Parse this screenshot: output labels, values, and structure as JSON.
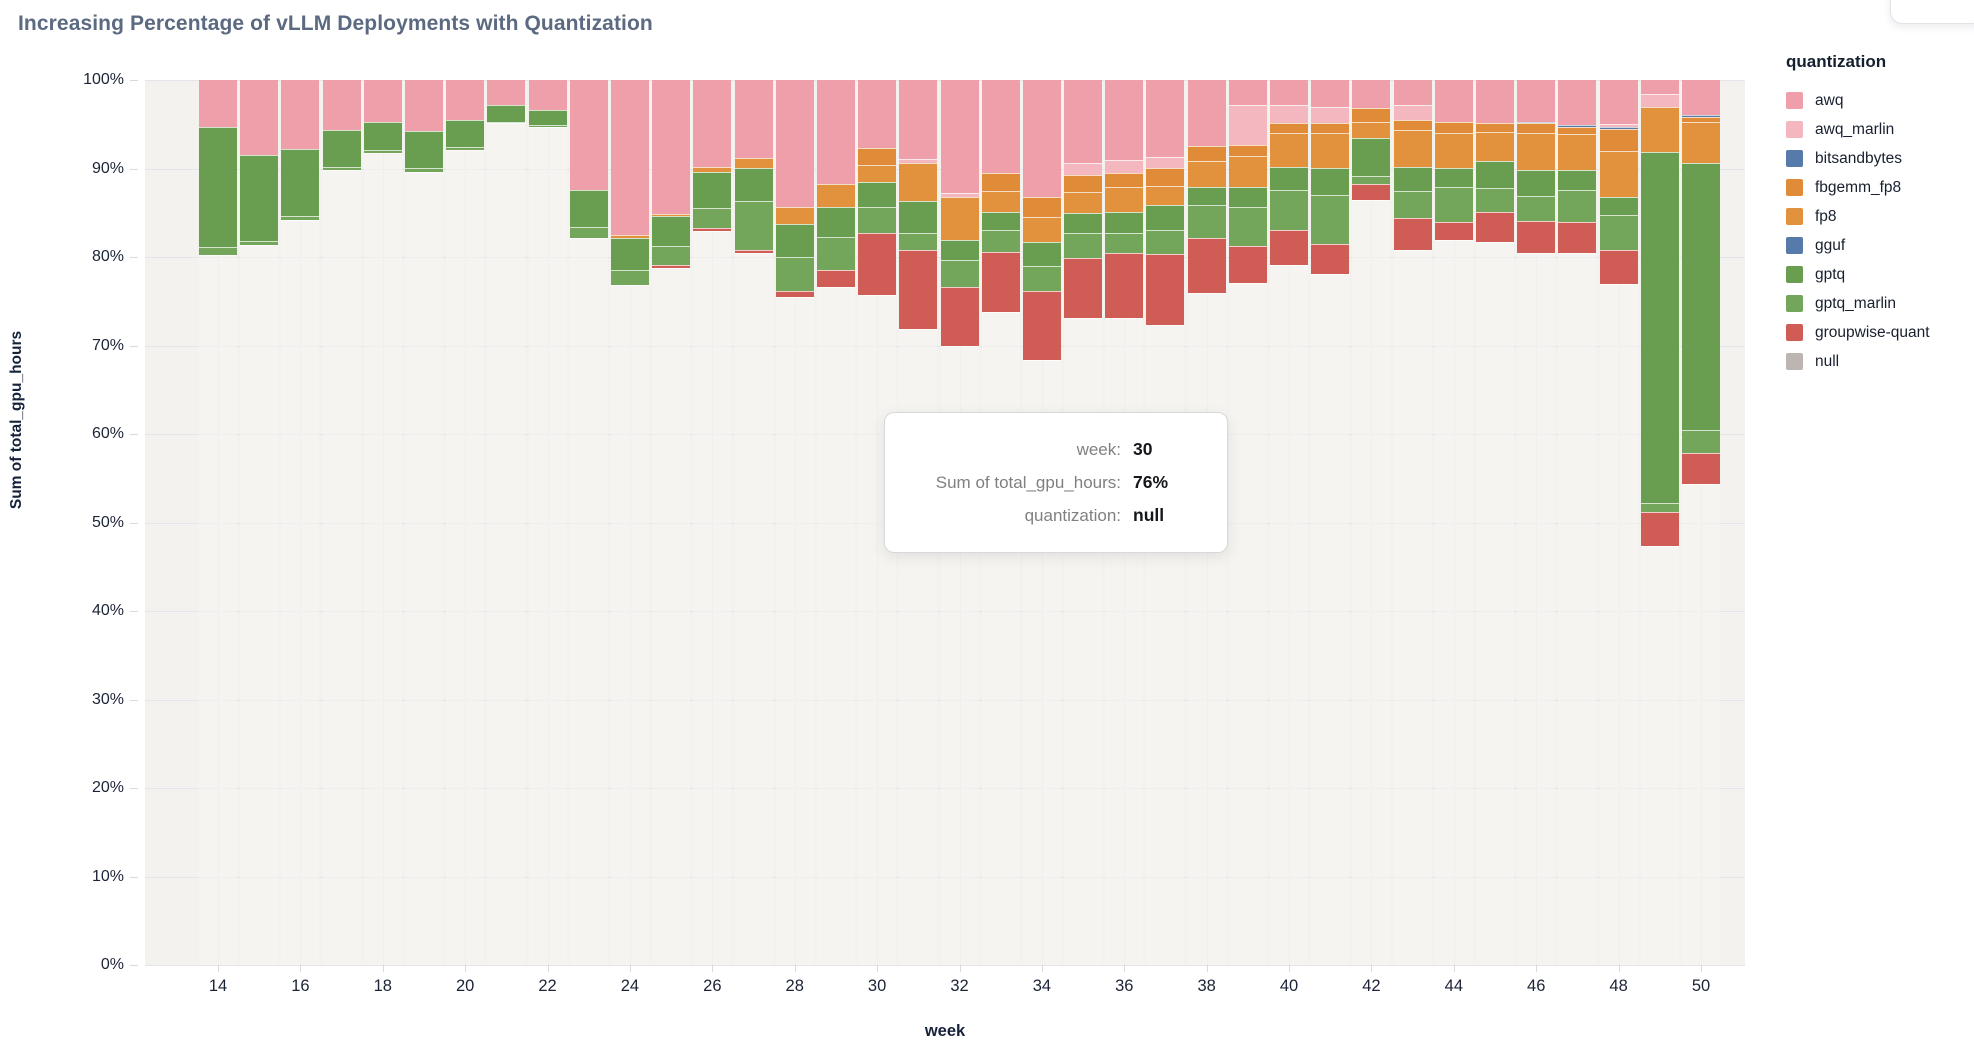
{
  "title": "Increasing Percentage of vLLM Deployments with Quantization",
  "y_axis": {
    "title": "Sum of total_gpu_hours",
    "tick_suffix": "%",
    "ticks": [
      0,
      10,
      20,
      30,
      40,
      50,
      60,
      70,
      80,
      90,
      100
    ]
  },
  "x_axis": {
    "title": "week",
    "tick_weeks": [
      14,
      16,
      18,
      20,
      22,
      24,
      26,
      28,
      30,
      32,
      34,
      36,
      38,
      40,
      42,
      44,
      46,
      48,
      50
    ]
  },
  "legend": {
    "title": "quantization",
    "items": [
      {
        "label": "awq",
        "color": "#EF9FA9"
      },
      {
        "label": "awq_marlin",
        "color": "#F4B7C0"
      },
      {
        "label": "bitsandbytes",
        "color": "#567AA9"
      },
      {
        "label": "fbgemm_fp8",
        "color": "#DF8B38"
      },
      {
        "label": "fp8",
        "color": "#E2923C"
      },
      {
        "label": "gguf",
        "color": "#567AA9"
      },
      {
        "label": "gptq",
        "color": "#699E51"
      },
      {
        "label": "gptq_marlin",
        "color": "#73A65B"
      },
      {
        "label": "groupwise-quant",
        "color": "#CF5C55"
      },
      {
        "label": "null",
        "color": "#BDB5B1"
      }
    ]
  },
  "tooltip": {
    "rows": [
      {
        "label": "week:",
        "value": "30"
      },
      {
        "label": "Sum of total_gpu_hours:",
        "value": "76%"
      },
      {
        "label": "quantization:",
        "value": "null"
      }
    ]
  },
  "chart_data": {
    "type": "bar",
    "subtype": "stacked-percent",
    "title": "Increasing Percentage of vLLM Deployments with Quantization",
    "xlabel": "week",
    "ylabel": "Sum of total_gpu_hours",
    "ylim": [
      0,
      100
    ],
    "grid": true,
    "legend_position": "right",
    "x": [
      14,
      15,
      16,
      17,
      18,
      19,
      20,
      21,
      22,
      23,
      24,
      25,
      26,
      27,
      28,
      29,
      30,
      31,
      32,
      33,
      34,
      35,
      36,
      37,
      38,
      39,
      40,
      41,
      42,
      43,
      44,
      45,
      46,
      47,
      48,
      49,
      50
    ],
    "stack_order_top_to_bottom": [
      "awq",
      "awq_marlin",
      "bitsandbytes",
      "fbgemm_fp8",
      "fp8",
      "gguf",
      "gptq",
      "gptq_marlin",
      "groupwise-quant",
      "null"
    ],
    "series": [
      {
        "name": "awq",
        "color": "#EF9FA9",
        "values": [
          5.3,
          8.5,
          7.8,
          5.7,
          4.7,
          5.8,
          4.5,
          2.8,
          3.4,
          12.4,
          17.5,
          15.1,
          9.8,
          8.8,
          14.3,
          11.7,
          7.7,
          8.9,
          12.8,
          10.5,
          13.2,
          9.4,
          9.0,
          8.7,
          7.5,
          2.8,
          2.8,
          3.0,
          3.2,
          2.8,
          4.7,
          4.9,
          4.7,
          5.1,
          5.0,
          1.6,
          4.0
        ]
      },
      {
        "name": "awq_marlin",
        "color": "#F4B7C0",
        "values": [
          0,
          0,
          0,
          0,
          0,
          0,
          0,
          0,
          0,
          0,
          0,
          0,
          0,
          0,
          0,
          0,
          0,
          0.5,
          0.4,
          0,
          0,
          1.3,
          1.5,
          1.3,
          0,
          4.6,
          2.1,
          1.9,
          0,
          1.7,
          0,
          0,
          0,
          0,
          0.3,
          1.4,
          0
        ]
      },
      {
        "name": "bitsandbytes",
        "color": "#567AA9",
        "values": [
          0,
          0,
          0,
          0,
          0,
          0,
          0,
          0,
          0,
          0,
          0,
          0,
          0,
          0,
          0,
          0,
          0,
          0,
          0,
          0,
          0,
          0,
          0,
          0,
          0,
          0,
          0,
          0,
          0,
          0,
          0,
          0,
          0.2,
          0.2,
          0.2,
          0,
          0.2
        ]
      },
      {
        "name": "fbgemm_fp8",
        "color": "#DF8B38",
        "values": [
          0,
          0,
          0,
          0,
          0,
          0,
          0,
          0,
          0,
          0,
          0,
          0,
          0,
          0,
          0,
          0,
          1.9,
          0,
          0,
          2.0,
          2.3,
          1.9,
          1.6,
          2.0,
          1.7,
          1.2,
          1.1,
          1.1,
          1.5,
          1.2,
          1.3,
          1.0,
          1.1,
          0.8,
          2.5,
          0,
          0.6
        ]
      },
      {
        "name": "fp8",
        "color": "#E2923C",
        "values": [
          0,
          0,
          0,
          0,
          0,
          0,
          0,
          0,
          0,
          0,
          0.3,
          0.3,
          0.6,
          1.2,
          2.0,
          2.6,
          1.9,
          4.3,
          4.9,
          2.4,
          2.8,
          2.4,
          2.8,
          2.1,
          2.9,
          3.5,
          3.8,
          4.0,
          1.9,
          4.1,
          4.0,
          3.3,
          4.2,
          4.1,
          5.2,
          5.1,
          4.6
        ]
      },
      {
        "name": "gguf",
        "color": "#567AA9",
        "values": [
          0,
          0,
          0,
          0,
          0,
          0,
          0,
          0,
          0,
          0,
          0,
          0,
          0,
          0,
          0,
          0,
          0,
          0,
          0,
          0,
          0,
          0,
          0,
          0,
          0,
          0,
          0,
          0,
          0,
          0,
          0,
          0,
          0,
          0,
          0,
          0,
          0
        ]
      },
      {
        "name": "gptq",
        "color": "#699E51",
        "values": [
          13.6,
          9.7,
          7.6,
          4.1,
          3.2,
          4.2,
          3.1,
          1.9,
          1.7,
          4.2,
          3.7,
          3.4,
          4.1,
          3.7,
          3.7,
          3.4,
          2.8,
          3.6,
          2.2,
          2.0,
          2.7,
          2.3,
          2.4,
          2.8,
          2.0,
          2.2,
          2.6,
          3.0,
          4.2,
          2.7,
          2.1,
          3.0,
          2.9,
          2.2,
          2.1,
          39.7,
          30.2
        ]
      },
      {
        "name": "gptq_marlin",
        "color": "#73A65B",
        "values": [
          0.9,
          0.5,
          0.4,
          0.4,
          0.4,
          0.4,
          0.3,
          0.2,
          0.2,
          1.3,
          1.7,
          2.1,
          2.2,
          5.5,
          3.8,
          3.8,
          3.0,
          1.9,
          3.1,
          2.5,
          2.9,
          2.8,
          2.3,
          2.8,
          3.8,
          4.5,
          4.5,
          5.5,
          0.9,
          3.1,
          3.9,
          2.7,
          2.8,
          3.7,
          3.9,
          1.0,
          2.6
        ]
      },
      {
        "name": "groupwise-quant",
        "color": "#CF5C55",
        "values": [
          0,
          0,
          0,
          0,
          0,
          0,
          0,
          0,
          0,
          0,
          0,
          0.3,
          0.4,
          0.4,
          0.7,
          1.9,
          7.0,
          8.9,
          6.7,
          6.8,
          7.7,
          6.8,
          7.3,
          8.0,
          6.2,
          4.1,
          4.0,
          3.4,
          1.9,
          3.6,
          2.1,
          3.4,
          3.7,
          3.4,
          3.9,
          3.9,
          3.4
        ]
      },
      {
        "name": "null",
        "color": "rgba(247,245,241,0.6)",
        "values": [
          80.2,
          81.3,
          84.2,
          89.8,
          91.7,
          89.6,
          92.1,
          95.1,
          94.7,
          82.1,
          76.8,
          78.8,
          82.9,
          80.4,
          75.5,
          76.6,
          75.7,
          71.9,
          69.9,
          73.8,
          68.4,
          73.1,
          73.1,
          72.3,
          75.9,
          77.1,
          79.1,
          78.1,
          86.4,
          80.8,
          81.9,
          81.7,
          80.4,
          80.5,
          76.9,
          47.3,
          54.4
        ]
      }
    ]
  }
}
